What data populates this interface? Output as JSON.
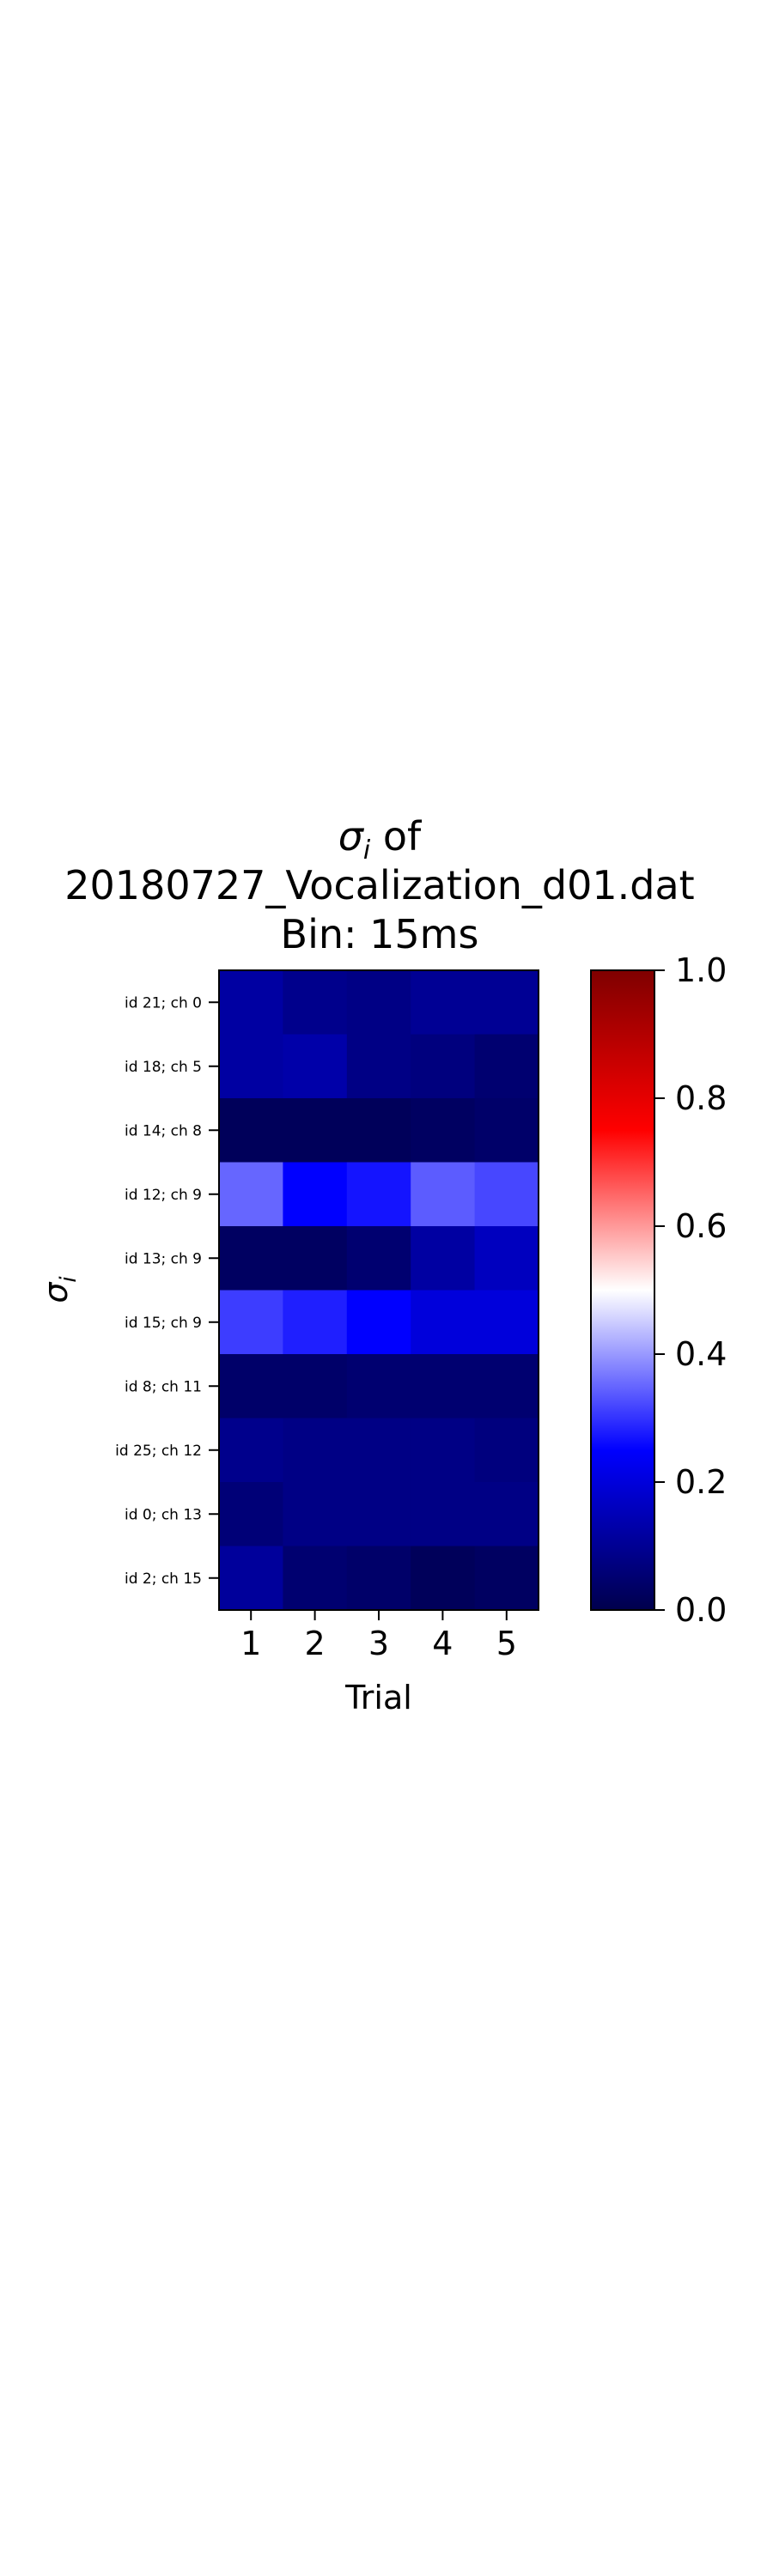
{
  "chart_data": {
    "type": "heatmap",
    "title_lines": [
      "σ_i of",
      "20180727_Vocalization_d01.dat",
      "Bin: 15ms"
    ],
    "title_symbol": "σ",
    "title_sub": "i",
    "title_rest": " of",
    "title_line2": "20180727_Vocalization_d01.dat",
    "title_line3": "Bin: 15ms",
    "xlabel": "Trial",
    "ylabel_symbol": "σ",
    "ylabel_sub": "i",
    "x_categories": [
      "1",
      "2",
      "3",
      "4",
      "5"
    ],
    "y_categories": [
      "id 21; ch 0",
      "id 18; ch 5",
      "id 14; ch 8",
      "id 12; ch 9",
      "id 13; ch 9",
      "id 15; ch 9",
      "id 8; ch 11",
      "id 25; ch 12",
      "id 0; ch 13",
      "id 2; ch 15"
    ],
    "values": [
      [
        0.12,
        0.09,
        0.08,
        0.1,
        0.1
      ],
      [
        0.12,
        0.13,
        0.08,
        0.07,
        0.05
      ],
      [
        0.02,
        0.02,
        0.02,
        0.03,
        0.04
      ],
      [
        0.35,
        0.25,
        0.27,
        0.34,
        0.32
      ],
      [
        0.03,
        0.03,
        0.05,
        0.12,
        0.16
      ],
      [
        0.31,
        0.28,
        0.25,
        0.2,
        0.2
      ],
      [
        0.04,
        0.04,
        0.05,
        0.05,
        0.05
      ],
      [
        0.09,
        0.08,
        0.08,
        0.08,
        0.07
      ],
      [
        0.06,
        0.08,
        0.08,
        0.08,
        0.08
      ],
      [
        0.11,
        0.05,
        0.04,
        0.02,
        0.03
      ]
    ],
    "colormap": "seismic",
    "vmin": 0.0,
    "vmax": 1.0,
    "colorbar_ticks": [
      "0.0",
      "0.2",
      "0.4",
      "0.6",
      "0.8",
      "1.0"
    ],
    "colors": {
      "low": "#00004c",
      "mid_blue": "#0000ff",
      "center": "#ffffff",
      "mid_red": "#ff0000",
      "high": "#7f0000"
    }
  }
}
